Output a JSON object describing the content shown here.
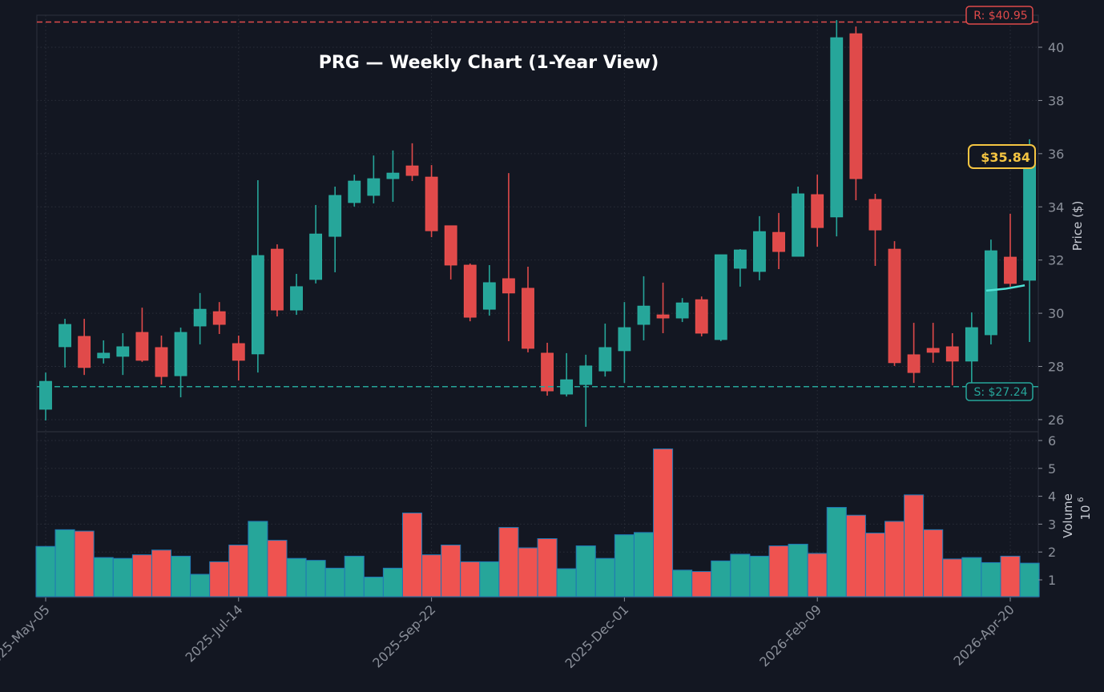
{
  "title": "PRG — Weekly Chart (1-Year View)",
  "colors": {
    "background": "#131722",
    "up": "#26a69a",
    "down": "#ef5350",
    "up_candle": "#26a69a",
    "down_candle": "#e04a4a",
    "resistance": "#e04a4a",
    "support": "#26a69a",
    "last_price": "#f5c542",
    "ma_line": "#4fe3d6",
    "grid": "#2a2e39",
    "axis_text": "#8a8f99",
    "volume_edge": "#1f77b4"
  },
  "price_axis": {
    "label": "Price ($)",
    "ticks": [
      26,
      28,
      30,
      32,
      34,
      36,
      38,
      40
    ]
  },
  "volume_axis": {
    "label": "Volume",
    "multiplier": "10",
    "exponent": "6",
    "ticks": [
      1,
      2,
      3,
      4,
      5,
      6
    ]
  },
  "x_axis": {
    "tick_labels": [
      "2025-May-05",
      "2025-Jul-14",
      "2025-Sep-22",
      "2025-Dec-01",
      "2026-Feb-09",
      "2026-Apr-20"
    ],
    "tick_indices": [
      0,
      10,
      20,
      30,
      40,
      50
    ]
  },
  "annotations": {
    "resistance": {
      "label": "R: $40.95",
      "value": 40.95
    },
    "support": {
      "label": "S: $27.24",
      "value": 27.24
    },
    "last_price": {
      "label": "$35.84",
      "value": 35.84
    }
  },
  "chart_data": {
    "type": "candlestick",
    "title": "PRG — Weekly Chart (1-Year View)",
    "xlabel": "",
    "ylabel": "Price ($)",
    "ylim": [
      25.5,
      41.0
    ],
    "volume_ylabel": "Volume (10^6)",
    "volume_ylim": [
      0.4,
      6.2
    ],
    "grid": true,
    "x_tick_labels": [
      "2025-May-05",
      "2025-Jul-14",
      "2025-Sep-22",
      "2025-Dec-01",
      "2026-Feb-09",
      "2026-Apr-20"
    ],
    "resistance": 40.95,
    "support": 27.24,
    "last_price": 35.84,
    "ma_segment": [
      [
        49,
        30.85
      ],
      [
        50,
        30.92
      ],
      [
        51,
        31.05
      ]
    ],
    "candles": [
      {
        "o": 26.39,
        "h": 27.77,
        "l": 25.97,
        "c": 27.44,
        "v": 2.2
      },
      {
        "o": 28.74,
        "h": 29.79,
        "l": 27.96,
        "c": 29.58,
        "v": 2.8
      },
      {
        "o": 29.13,
        "h": 29.79,
        "l": 27.68,
        "c": 27.96,
        "v": 2.75
      },
      {
        "o": 28.32,
        "h": 28.98,
        "l": 28.11,
        "c": 28.5,
        "v": 1.8
      },
      {
        "o": 28.38,
        "h": 29.25,
        "l": 27.68,
        "c": 28.74,
        "v": 1.77
      },
      {
        "o": 29.28,
        "h": 30.21,
        "l": 28.17,
        "c": 28.23,
        "v": 1.9
      },
      {
        "o": 28.71,
        "h": 29.16,
        "l": 27.32,
        "c": 27.62,
        "v": 2.07
      },
      {
        "o": 27.65,
        "h": 29.46,
        "l": 26.84,
        "c": 29.28,
        "v": 1.85
      },
      {
        "o": 29.52,
        "h": 30.76,
        "l": 28.83,
        "c": 30.15,
        "v": 1.2
      },
      {
        "o": 30.06,
        "h": 30.42,
        "l": 29.22,
        "c": 29.58,
        "v": 1.65
      },
      {
        "o": 28.86,
        "h": 29.16,
        "l": 27.47,
        "c": 28.23,
        "v": 2.25
      },
      {
        "o": 28.47,
        "h": 35.0,
        "l": 27.77,
        "c": 32.17,
        "v": 3.1
      },
      {
        "o": 32.41,
        "h": 32.59,
        "l": 29.88,
        "c": 30.12,
        "v": 2.42
      },
      {
        "o": 30.12,
        "h": 31.48,
        "l": 29.94,
        "c": 31.0,
        "v": 1.77
      },
      {
        "o": 31.27,
        "h": 34.07,
        "l": 31.12,
        "c": 32.98,
        "v": 1.7
      },
      {
        "o": 32.89,
        "h": 34.76,
        "l": 31.54,
        "c": 34.43,
        "v": 1.42
      },
      {
        "o": 34.16,
        "h": 35.21,
        "l": 34.01,
        "c": 34.97,
        "v": 1.85
      },
      {
        "o": 34.43,
        "h": 35.93,
        "l": 34.13,
        "c": 35.06,
        "v": 1.1
      },
      {
        "o": 35.06,
        "h": 36.12,
        "l": 34.19,
        "c": 35.27,
        "v": 1.42
      },
      {
        "o": 35.54,
        "h": 36.39,
        "l": 34.97,
        "c": 35.18,
        "v": 3.4
      },
      {
        "o": 35.12,
        "h": 35.57,
        "l": 32.86,
        "c": 33.1,
        "v": 1.9
      },
      {
        "o": 33.29,
        "h": 33.29,
        "l": 31.27,
        "c": 31.81,
        "v": 2.25
      },
      {
        "o": 31.81,
        "h": 31.87,
        "l": 29.7,
        "c": 29.85,
        "v": 1.65
      },
      {
        "o": 30.15,
        "h": 31.81,
        "l": 29.91,
        "c": 31.15,
        "v": 1.65
      },
      {
        "o": 31.3,
        "h": 35.27,
        "l": 28.95,
        "c": 30.76,
        "v": 2.88
      },
      {
        "o": 30.94,
        "h": 31.75,
        "l": 28.53,
        "c": 28.68,
        "v": 2.15
      },
      {
        "o": 28.5,
        "h": 28.89,
        "l": 26.9,
        "c": 27.08,
        "v": 2.48
      },
      {
        "o": 26.96,
        "h": 28.5,
        "l": 26.87,
        "c": 27.5,
        "v": 1.4
      },
      {
        "o": 27.32,
        "h": 28.44,
        "l": 25.73,
        "c": 28.02,
        "v": 2.22
      },
      {
        "o": 27.83,
        "h": 29.61,
        "l": 27.62,
        "c": 28.71,
        "v": 1.77
      },
      {
        "o": 28.59,
        "h": 30.42,
        "l": 27.38,
        "c": 29.46,
        "v": 2.62
      },
      {
        "o": 29.58,
        "h": 31.39,
        "l": 28.98,
        "c": 30.27,
        "v": 2.7
      },
      {
        "o": 29.94,
        "h": 31.15,
        "l": 29.25,
        "c": 29.82,
        "v": 5.7
      },
      {
        "o": 29.82,
        "h": 30.57,
        "l": 29.67,
        "c": 30.39,
        "v": 1.35
      },
      {
        "o": 30.51,
        "h": 30.63,
        "l": 29.13,
        "c": 29.25,
        "v": 1.3
      },
      {
        "o": 29.01,
        "h": 32.2,
        "l": 28.95,
        "c": 32.2,
        "v": 1.68
      },
      {
        "o": 31.69,
        "h": 32.41,
        "l": 31.0,
        "c": 32.38,
        "v": 1.92
      },
      {
        "o": 31.57,
        "h": 33.65,
        "l": 31.24,
        "c": 33.07,
        "v": 1.85
      },
      {
        "o": 33.04,
        "h": 33.77,
        "l": 31.66,
        "c": 32.32,
        "v": 2.22
      },
      {
        "o": 32.14,
        "h": 34.76,
        "l": 32.14,
        "c": 34.49,
        "v": 2.28
      },
      {
        "o": 34.46,
        "h": 35.21,
        "l": 32.5,
        "c": 33.22,
        "v": 1.95
      },
      {
        "o": 33.62,
        "h": 41.02,
        "l": 32.89,
        "c": 40.36,
        "v": 3.6
      },
      {
        "o": 40.51,
        "h": 40.78,
        "l": 34.25,
        "c": 35.06,
        "v": 3.32
      },
      {
        "o": 34.28,
        "h": 34.49,
        "l": 31.78,
        "c": 33.13,
        "v": 2.68
      },
      {
        "o": 32.41,
        "h": 32.71,
        "l": 28.02,
        "c": 28.14,
        "v": 3.1
      },
      {
        "o": 28.44,
        "h": 29.64,
        "l": 27.38,
        "c": 27.77,
        "v": 4.05
      },
      {
        "o": 28.68,
        "h": 29.64,
        "l": 28.14,
        "c": 28.53,
        "v": 2.8
      },
      {
        "o": 28.74,
        "h": 29.25,
        "l": 27.29,
        "c": 28.2,
        "v": 1.75
      },
      {
        "o": 28.2,
        "h": 30.03,
        "l": 27.26,
        "c": 29.46,
        "v": 1.8
      },
      {
        "o": 29.19,
        "h": 32.77,
        "l": 28.83,
        "c": 32.35,
        "v": 1.62
      },
      {
        "o": 32.11,
        "h": 33.74,
        "l": 31.0,
        "c": 31.12,
        "v": 1.85
      },
      {
        "o": 31.24,
        "h": 36.54,
        "l": 28.92,
        "c": 35.84,
        "v": 1.6
      }
    ]
  }
}
